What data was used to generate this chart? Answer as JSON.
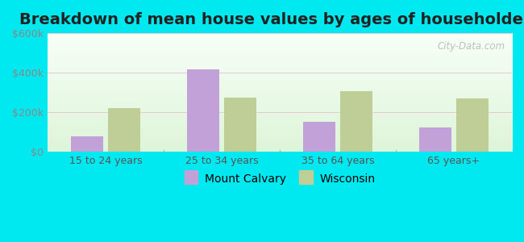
{
  "title": "Breakdown of mean house values by ages of householders",
  "categories": [
    "15 to 24 years",
    "25 to 34 years",
    "35 to 64 years",
    "65 years+"
  ],
  "mount_calvary": [
    75000,
    415000,
    150000,
    120000
  ],
  "wisconsin": [
    220000,
    275000,
    305000,
    270000
  ],
  "bar_color_calvary": "#c2a0d8",
  "bar_color_wisconsin": "#bece96",
  "ylim": [
    0,
    600000
  ],
  "yticks": [
    0,
    200000,
    400000,
    600000
  ],
  "ytick_labels": [
    "$0",
    "$200k",
    "$400k",
    "$600k"
  ],
  "outer_bg": "#00e8f0",
  "legend_calvary": "Mount Calvary",
  "legend_wisconsin": "Wisconsin",
  "title_fontsize": 14,
  "watermark": "City-Data.com"
}
